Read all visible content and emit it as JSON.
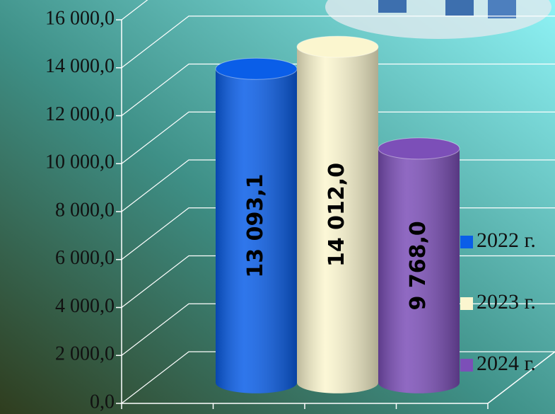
{
  "chart_data": {
    "type": "bar",
    "categories": [
      null
    ],
    "series": [
      {
        "name": "2022 г.",
        "color": "#0a5ee8",
        "values": [
          13093.1
        ],
        "value_labels": [
          "13 093,1"
        ]
      },
      {
        "name": "2023 г.",
        "color": "#fbf6cf",
        "values": [
          14012.0
        ],
        "value_labels": [
          "14 012,0"
        ]
      },
      {
        "name": "2024 г.",
        "color": "#7c4fb8",
        "values": [
          9768.0
        ],
        "value_labels": [
          "9 768,0"
        ]
      }
    ],
    "ylim": [
      0,
      16000
    ],
    "yticks": [
      {
        "value": 0,
        "label": "0,0"
      },
      {
        "value": 2000,
        "label": "2 000,0"
      },
      {
        "value": 4000,
        "label": "4 000,0"
      },
      {
        "value": 6000,
        "label": "6 000,0"
      },
      {
        "value": 8000,
        "label": "8 000,0"
      },
      {
        "value": 10000,
        "label": "10 000,0"
      },
      {
        "value": 12000,
        "label": "12 000,0"
      },
      {
        "value": 14000,
        "label": "14 000,0"
      },
      {
        "value": 16000,
        "label": "16 000,0"
      }
    ],
    "grid": true,
    "legend": "right"
  }
}
